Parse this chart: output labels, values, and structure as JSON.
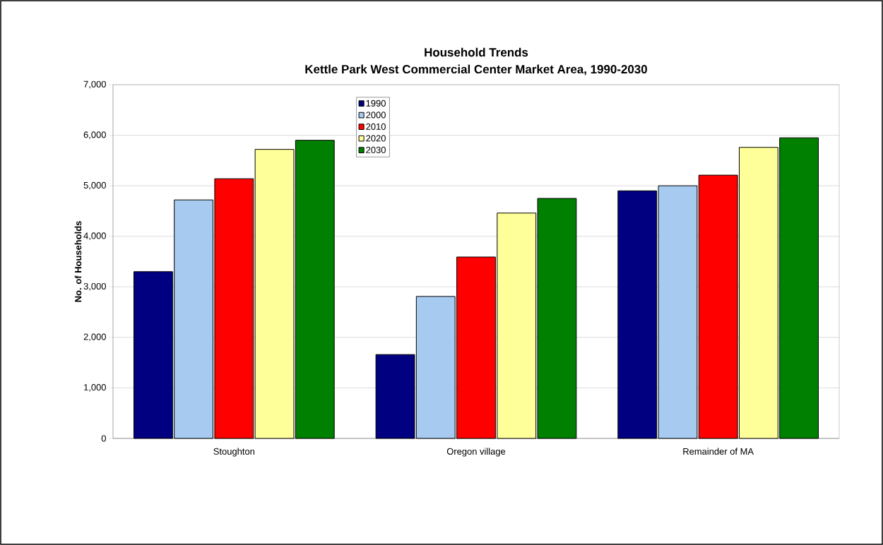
{
  "chart_data": {
    "type": "bar",
    "title": "Household Trends",
    "subtitle": "Kettle Park West Commercial Center Market Area, 1990-2030",
    "ylabel": "No. of Households",
    "categories": [
      "Stoughton",
      "Oregon village",
      "Remainder of MA"
    ],
    "series": [
      {
        "name": "1990",
        "color": "#000080",
        "values": [
          3300,
          1660,
          4900
        ]
      },
      {
        "name": "2000",
        "color": "#a6caf0",
        "values": [
          4720,
          2810,
          5000
        ]
      },
      {
        "name": "2010",
        "color": "#ff0000",
        "values": [
          5140,
          3590,
          5210
        ]
      },
      {
        "name": "2020",
        "color": "#ffff99",
        "values": [
          5720,
          4460,
          5760
        ]
      },
      {
        "name": "2030",
        "color": "#008000",
        "values": [
          5900,
          4750,
          5950
        ]
      }
    ],
    "ylim": [
      0,
      7000
    ],
    "yticks": [
      0,
      {
        "value": 1000,
        "label": "1,000"
      },
      {
        "value": 2000,
        "label": "2,000"
      },
      {
        "value": 3000,
        "label": "3,000"
      },
      {
        "value": 4000,
        "label": "4,000"
      },
      {
        "value": 5000,
        "label": "5,000"
      },
      {
        "value": 6000,
        "label": "6,000"
      },
      {
        "value": 7000,
        "label": "7,000"
      }
    ],
    "grid": "y",
    "legend": "top"
  }
}
